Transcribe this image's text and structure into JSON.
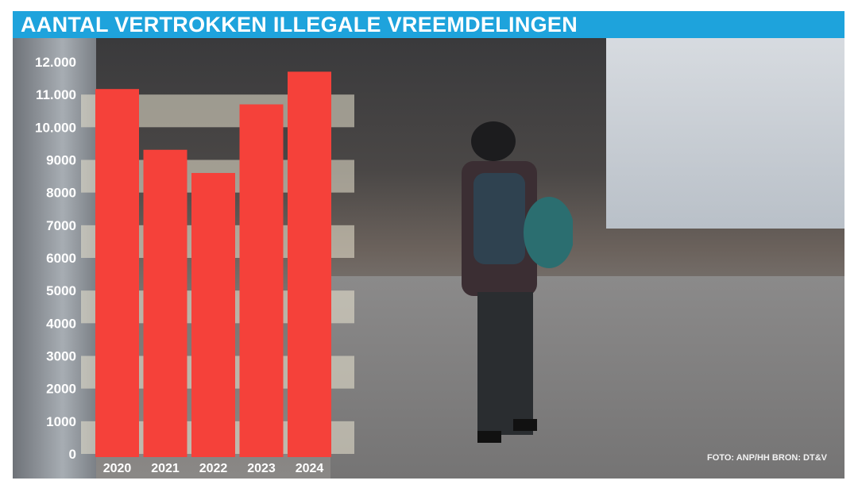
{
  "title": "AANTAL VERTROKKEN ILLEGALE VREEMDELINGEN",
  "credit": "FOTO: ANP/HH  BRON: DT&V",
  "colors": {
    "title_bar": "#1ea3dc",
    "bars": "#f5413a"
  },
  "chart_data": {
    "type": "bar",
    "title": "AANTAL VERTROKKEN ILLEGALE VREEMDELINGEN",
    "categories": [
      "2020",
      "2021",
      "2022",
      "2023",
      "2024"
    ],
    "values": [
      11170,
      9310,
      8600,
      10700,
      11700
    ],
    "ylim": [
      0,
      12000
    ],
    "yticks": [
      0,
      1000,
      2000,
      3000,
      4000,
      5000,
      6000,
      7000,
      8000,
      9000,
      10000,
      11000,
      12000
    ],
    "ytick_labels": [
      "0",
      "1000",
      "2000",
      "3000",
      "4000",
      "5000",
      "6000",
      "7000",
      "8000",
      "9000",
      "10.000",
      "11.000",
      "12.000"
    ],
    "grid": "alternating light bands",
    "xlabel": "",
    "ylabel": ""
  }
}
